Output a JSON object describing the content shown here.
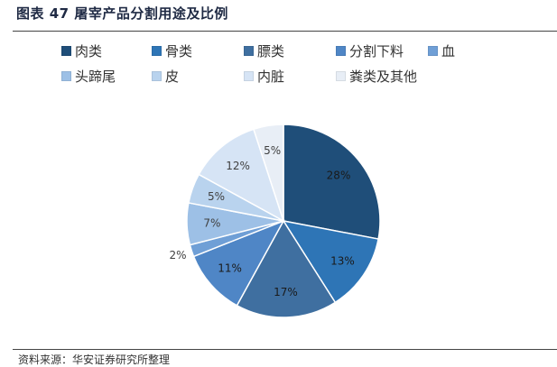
{
  "header": {
    "title": "图表 47 屠宰产品分割用途及比例"
  },
  "footer": {
    "source": "资料来源：华安证券研究所整理"
  },
  "chart_data": {
    "type": "pie",
    "title": "",
    "legend_position": "top",
    "categories": [
      "肉类",
      "骨类",
      "膘类",
      "分割下料",
      "血",
      "头蹄尾",
      "皮",
      "内脏",
      "粪类及其他"
    ],
    "values": [
      28,
      13,
      17,
      11,
      2,
      7,
      5,
      12,
      5
    ],
    "labels": [
      "28%",
      "13%",
      "17%",
      "11%",
      "2%",
      "7%",
      "5%",
      "12%",
      "5%"
    ],
    "colors": [
      "#1f4e79",
      "#2e75b6",
      "#3f6fa0",
      "#4f86c6",
      "#6f9fd6",
      "#9dc0e6",
      "#b9d3ee",
      "#d6e4f5",
      "#e8eef6"
    ]
  }
}
